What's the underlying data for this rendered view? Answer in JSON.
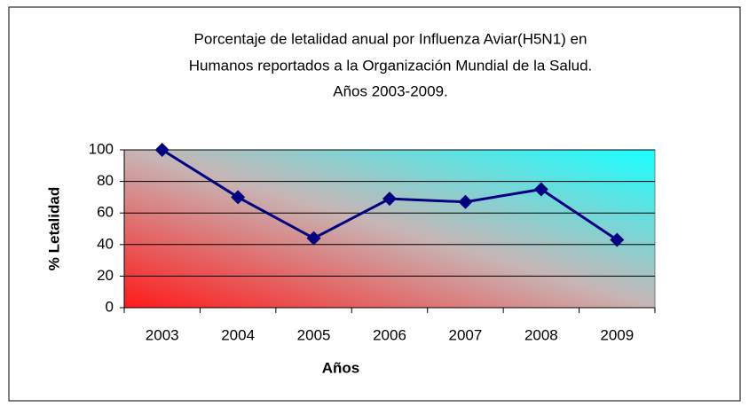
{
  "chart_data": {
    "type": "line",
    "title": [
      "Porcentaje de letalidad anual por Influenza Aviar(H5N1) en",
      "Humanos reportados a la Organización Mundial de la Salud.",
      "Años 2003-2009."
    ],
    "x_label": "Años",
    "y_label": "% Letalidad",
    "categories": [
      "2003",
      "2004",
      "2005",
      "2006",
      "2007",
      "2008",
      "2009"
    ],
    "series": [
      {
        "name": "% Letalidad",
        "color": "#000080",
        "values": [
          100,
          70,
          44,
          69,
          67,
          75,
          43
        ]
      }
    ],
    "ylim": [
      0,
      100
    ],
    "yticks": [
      0,
      20,
      40,
      60,
      80,
      100
    ],
    "grid": true
  }
}
